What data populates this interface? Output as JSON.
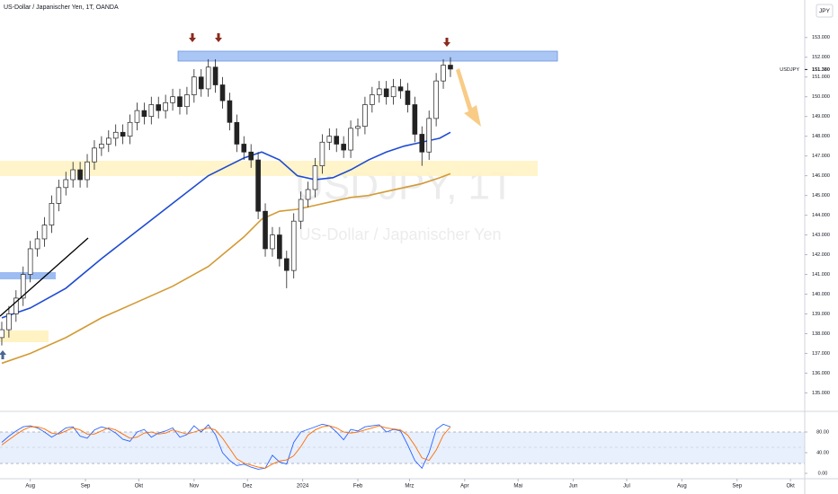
{
  "chart_data": [
    {
      "type": "candlestick",
      "title": "US-Dollar / Japanischer Yen, 1T, OANDA",
      "watermark": "USDJPY, 1T",
      "watermark_subtitle": "US-Dollar / Japanischer Yen",
      "currency": "JPY",
      "symbol": "USDJPY",
      "last_price": {
        "value": 151.38,
        "label": "151.380"
      },
      "up_color": "#ffffff",
      "down_color": "#222222",
      "x": [
        -16,
        -12,
        -8,
        -4,
        0,
        4,
        8,
        12,
        16,
        20,
        24,
        28,
        32,
        36,
        40,
        44,
        48,
        52,
        56,
        60,
        64,
        68,
        72,
        76,
        80,
        84,
        88,
        92,
        96,
        100,
        104,
        108,
        112,
        116,
        120,
        124,
        128,
        132,
        136,
        140,
        144,
        148,
        152,
        156,
        160,
        164,
        168,
        172,
        176,
        180,
        184,
        188,
        192,
        196,
        200,
        204,
        208,
        212,
        216,
        220,
        224,
        228,
        232,
        236
      ],
      "open": [
        137.8,
        138.2,
        139.0,
        139.8,
        141.0,
        142.3,
        142.8,
        143.5,
        144.6,
        145.4,
        145.8,
        146.3,
        145.8,
        146.7,
        147.4,
        147.6,
        147.9,
        148.2,
        148.0,
        148.7,
        149.3,
        149.0,
        149.6,
        149.3,
        149.7,
        150.0,
        149.5,
        150.1,
        151.0,
        150.4,
        151.5,
        150.6,
        149.8,
        148.7,
        147.6,
        147.2,
        146.8,
        144.2,
        142.3,
        143.0,
        141.8,
        141.2,
        143.7,
        144.8,
        145.3,
        146.5,
        147.7,
        148.0,
        147.6,
        147.3,
        148.4,
        148.5,
        149.6,
        150.1,
        150.4,
        150.0,
        150.5,
        150.3,
        149.6,
        148.1,
        147.2,
        148.9,
        150.8,
        151.6
      ],
      "high": [
        138.6,
        139.4,
        140.2,
        141.4,
        142.7,
        143.2,
        143.9,
        145.0,
        145.8,
        146.2,
        146.7,
        146.7,
        147.1,
        147.8,
        148.0,
        148.3,
        148.6,
        148.6,
        149.1,
        149.7,
        149.7,
        150.0,
        150.0,
        150.1,
        150.4,
        150.4,
        150.5,
        151.4,
        151.4,
        151.9,
        151.9,
        151.0,
        150.2,
        149.1,
        148.0,
        147.6,
        147.2,
        144.6,
        143.4,
        143.4,
        142.2,
        144.1,
        145.2,
        145.7,
        146.9,
        148.1,
        148.4,
        148.4,
        148.0,
        148.8,
        148.9,
        150.0,
        150.5,
        150.8,
        150.8,
        150.9,
        150.9,
        150.7,
        150.0,
        148.5,
        149.3,
        151.2,
        151.9,
        152.0
      ],
      "low": [
        137.4,
        137.8,
        138.6,
        139.4,
        140.6,
        141.9,
        142.4,
        143.1,
        144.2,
        145.0,
        145.4,
        145.4,
        145.4,
        146.3,
        147.0,
        147.2,
        147.5,
        147.6,
        147.6,
        148.3,
        148.6,
        148.6,
        148.9,
        148.9,
        149.3,
        149.1,
        149.1,
        149.7,
        150.0,
        150.0,
        150.2,
        149.4,
        148.3,
        147.2,
        146.8,
        146.4,
        143.8,
        141.9,
        141.9,
        141.4,
        140.3,
        140.8,
        143.3,
        144.4,
        144.9,
        146.1,
        147.3,
        147.2,
        146.9,
        146.9,
        148.0,
        148.1,
        149.2,
        149.7,
        149.6,
        149.6,
        149.9,
        149.2,
        147.7,
        146.5,
        146.8,
        148.5,
        150.4,
        151.0
      ],
      "close": [
        138.2,
        139.0,
        139.8,
        141.0,
        142.3,
        142.8,
        143.5,
        144.6,
        145.4,
        145.8,
        146.3,
        145.8,
        146.7,
        147.4,
        147.6,
        147.9,
        148.2,
        148.0,
        148.7,
        149.3,
        149.0,
        149.6,
        149.3,
        149.7,
        150.0,
        149.5,
        150.1,
        151.0,
        150.4,
        151.5,
        150.6,
        149.8,
        148.7,
        147.6,
        147.2,
        146.8,
        144.2,
        142.3,
        143.0,
        141.8,
        141.2,
        143.7,
        144.8,
        145.3,
        146.5,
        147.7,
        148.0,
        147.6,
        147.3,
        148.4,
        148.5,
        149.6,
        150.1,
        150.4,
        150.0,
        150.5,
        150.3,
        149.6,
        148.1,
        147.2,
        148.9,
        150.8,
        151.6,
        151.4
      ],
      "series": [
        {
          "color": "#1e4bd2",
          "x": [
            -16,
            0,
            20,
            40,
            60,
            80,
            100,
            120,
            130,
            140,
            150,
            160,
            170,
            180,
            190,
            200,
            210,
            220,
            230,
            236
          ],
          "values": [
            138.8,
            139.3,
            140.3,
            141.8,
            143.2,
            144.6,
            146.0,
            146.9,
            147.2,
            146.8,
            146.0,
            145.8,
            145.9,
            146.3,
            146.8,
            147.2,
            147.5,
            147.7,
            147.9,
            148.2
          ]
        },
        {
          "color": "#d39a34",
          "x": [
            -16,
            0,
            20,
            40,
            60,
            80,
            100,
            120,
            130,
            140,
            150,
            160,
            170,
            180,
            190,
            200,
            210,
            220,
            230,
            236
          ],
          "values": [
            136.5,
            137.0,
            137.8,
            138.8,
            139.6,
            140.4,
            141.4,
            142.9,
            143.8,
            144.2,
            144.3,
            144.5,
            144.7,
            144.9,
            145.0,
            145.2,
            145.4,
            145.6,
            145.9,
            146.1
          ]
        }
      ],
      "xlim": [
        -17,
        435
      ],
      "xticks": [
        {
          "value": 0,
          "label": "Aug"
        },
        {
          "value": 31,
          "label": "Sep"
        },
        {
          "value": 61,
          "label": "Okt"
        },
        {
          "value": 92,
          "label": "Nov"
        },
        {
          "value": 122,
          "label": "Dez"
        },
        {
          "value": 153,
          "label": "2024"
        },
        {
          "value": 184,
          "label": "Feb"
        },
        {
          "value": 213,
          "label": "Mrz"
        },
        {
          "value": 244,
          "label": "Apr"
        },
        {
          "value": 274,
          "label": "Mai"
        },
        {
          "value": 305,
          "label": "Jun"
        },
        {
          "value": 335,
          "label": "Jul"
        },
        {
          "value": 366,
          "label": "Aug"
        },
        {
          "value": 397,
          "label": "Sep"
        },
        {
          "value": 427,
          "label": "Okt"
        }
      ],
      "ylim": [
        134.2,
        154.9
      ],
      "yticks": [
        {
          "value": 135,
          "label": "135.000"
        },
        {
          "value": 136,
          "label": "136.000"
        },
        {
          "value": 137,
          "label": "137.000"
        },
        {
          "value": 138,
          "label": "138.000"
        },
        {
          "value": 139,
          "label": "139.000"
        },
        {
          "value": 140,
          "label": "140.000"
        },
        {
          "value": 141,
          "label": "141.000"
        },
        {
          "value": 142,
          "label": "142.000"
        },
        {
          "value": 143,
          "label": "143.000"
        },
        {
          "value": 144,
          "label": "144.000"
        },
        {
          "value": 145,
          "label": "145.000"
        },
        {
          "value": 146,
          "label": "146.000"
        },
        {
          "value": 147,
          "label": "147.000"
        },
        {
          "value": 148,
          "label": "148.000"
        },
        {
          "value": 149,
          "label": "149.000"
        },
        {
          "value": 150,
          "label": "150.000"
        },
        {
          "value": 151,
          "label": "151.000"
        },
        {
          "value": 152,
          "label": "152.000"
        },
        {
          "value": 153,
          "label": "153.000"
        }
      ]
    },
    {
      "type": "line",
      "x": [
        -16,
        -12,
        -8,
        -4,
        0,
        4,
        8,
        12,
        16,
        20,
        24,
        28,
        32,
        36,
        40,
        44,
        48,
        52,
        56,
        60,
        64,
        68,
        72,
        76,
        80,
        84,
        88,
        92,
        96,
        100,
        104,
        108,
        112,
        116,
        120,
        124,
        128,
        132,
        136,
        140,
        144,
        148,
        152,
        156,
        160,
        164,
        168,
        172,
        176,
        180,
        184,
        188,
        192,
        196,
        200,
        204,
        208,
        212,
        216,
        220,
        224,
        228,
        232,
        236
      ],
      "series": [
        {
          "color": "#2962ff",
          "values": [
            60,
            72,
            82,
            90,
            92,
            88,
            80,
            70,
            78,
            88,
            90,
            72,
            68,
            84,
            90,
            86,
            78,
            66,
            62,
            80,
            85,
            70,
            78,
            82,
            88,
            70,
            75,
            92,
            80,
            94,
            75,
            40,
            25,
            15,
            18,
            12,
            8,
            10,
            35,
            22,
            18,
            60,
            80,
            85,
            90,
            95,
            92,
            80,
            65,
            85,
            82,
            90,
            92,
            94,
            80,
            85,
            82,
            55,
            25,
            10,
            40,
            85,
            95,
            90
          ]
        },
        {
          "color": "#ff6d00",
          "values": [
            55,
            65,
            75,
            84,
            90,
            90,
            86,
            78,
            76,
            82,
            88,
            84,
            76,
            76,
            82,
            88,
            84,
            76,
            68,
            70,
            78,
            80,
            76,
            78,
            84,
            80,
            76,
            80,
            84,
            88,
            84,
            68,
            48,
            28,
            20,
            16,
            12,
            10,
            18,
            24,
            26,
            34,
            52,
            74,
            84,
            90,
            92,
            88,
            80,
            78,
            80,
            84,
            88,
            92,
            88,
            86,
            84,
            74,
            54,
            30,
            25,
            45,
            74,
            90
          ]
        }
      ],
      "ylim": [
        -10.4,
        116.5
      ],
      "yticks": [
        {
          "value": 0,
          "label": "0.00"
        },
        {
          "value": 40,
          "label": "40.00"
        },
        {
          "value": 80,
          "label": "80.00"
        }
      ]
    }
  ]
}
